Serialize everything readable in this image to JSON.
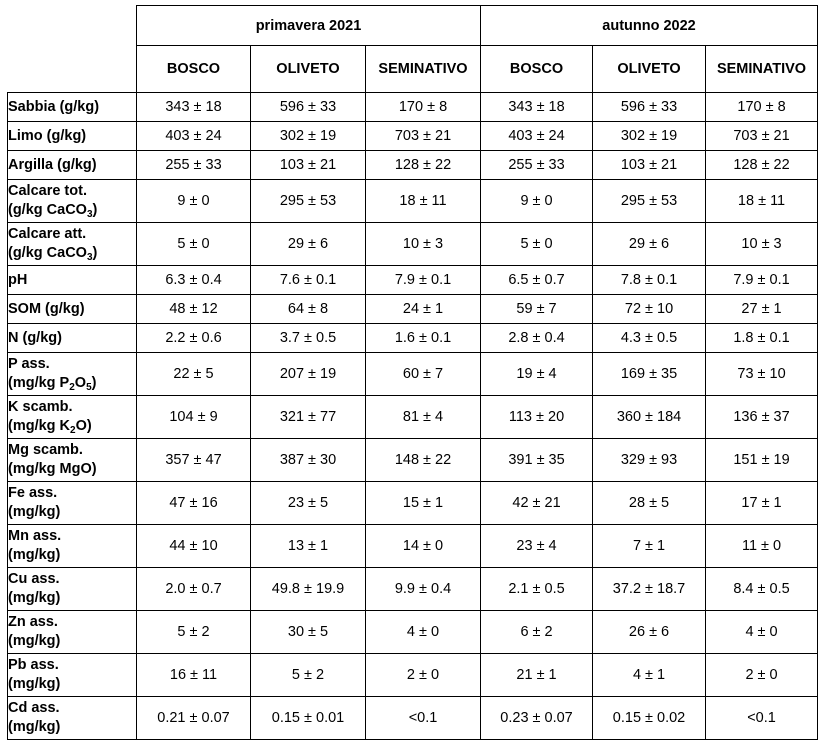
{
  "seasons": [
    "primavera 2021",
    "autunno 2022"
  ],
  "sites": [
    "BOSCO",
    "OLIVETO",
    "SEMINATIVO",
    "BOSCO",
    "OLIVETO",
    "SEMINATIVO"
  ],
  "rows": [
    {
      "label": "Sabbia (g/kg)",
      "values": [
        "343 ± 18",
        "596 ± 33",
        "170 ± 8",
        "343 ± 18",
        "596 ± 33",
        "170 ± 8"
      ]
    },
    {
      "label": "Limo (g/kg)",
      "values": [
        "403 ± 24",
        "302 ± 19",
        "703 ± 21",
        "403 ± 24",
        "302 ± 19",
        "703 ± 21"
      ]
    },
    {
      "label": "Argilla (g/kg)",
      "values": [
        "255 ± 33",
        "103 ± 21",
        "128 ± 22",
        "255 ± 33",
        "103 ± 21",
        "128 ± 22"
      ]
    },
    {
      "label": "Calcare tot.",
      "label2": "(g/kg CaCO",
      "sub": "3",
      "label2_end": ")",
      "values": [
        "9 ± 0",
        "295 ± 53",
        "18 ± 11",
        "9 ± 0",
        "295 ± 53",
        "18 ± 11"
      ]
    },
    {
      "label": "Calcare att.",
      "label2": "(g/kg CaCO",
      "sub": "3",
      "label2_end": ")",
      "values": [
        "5 ± 0",
        "29 ± 6",
        "10 ± 3",
        "5 ± 0",
        "29 ± 6",
        "10 ± 3"
      ]
    },
    {
      "label": "pH",
      "values": [
        "6.3 ± 0.4",
        "7.6 ± 0.1",
        "7.9 ± 0.1",
        "6.5 ± 0.7",
        "7.8 ± 0.1",
        "7.9 ± 0.1"
      ]
    },
    {
      "label": "SOM (g/kg)",
      "values": [
        "48 ± 12",
        "64 ± 8",
        "24 ± 1",
        "59 ± 7",
        "72 ± 10",
        "27 ± 1"
      ]
    },
    {
      "label": "N (g/kg)",
      "values": [
        "2.2 ± 0.6",
        "3.7 ± 0.5",
        "1.6 ± 0.1",
        "2.8 ± 0.4",
        "4.3 ± 0.5",
        "1.8 ± 0.1"
      ]
    },
    {
      "label": "P ass.",
      "label2": "(mg/kg P",
      "sub": "2",
      "label2_mid": "O",
      "sub2": "5",
      "label2_end": ")",
      "values": [
        "22 ± 5",
        "207 ± 19",
        "60 ± 7",
        "19 ± 4",
        "169 ± 35",
        "73 ± 10"
      ]
    },
    {
      "label": "K scamb.",
      "label2": "(mg/kg K",
      "sub": "2",
      "label2_end": "O)",
      "values": [
        "104 ± 9",
        "321 ± 77",
        "81 ± 4",
        "113 ± 20",
        "360 ± 184",
        "136 ± 37"
      ]
    },
    {
      "label": "Mg scamb.",
      "label2": "(mg/kg MgO)",
      "values": [
        "357 ± 47",
        "387 ± 30",
        "148 ± 22",
        "391 ± 35",
        "329 ± 93",
        "151 ± 19"
      ]
    },
    {
      "label": "Fe ass.",
      "label2": "(mg/kg)",
      "values": [
        "47 ± 16",
        "23 ± 5",
        "15 ± 1",
        "42 ± 21",
        "28 ± 5",
        "17 ± 1"
      ]
    },
    {
      "label": "Mn ass.",
      "label2": "(mg/kg)",
      "values": [
        "44 ± 10",
        "13 ± 1",
        "14 ± 0",
        "23 ± 4",
        "7 ± 1",
        "11 ± 0"
      ]
    },
    {
      "label": "Cu ass.",
      "label2": "(mg/kg)",
      "values": [
        "2.0 ± 0.7",
        "49.8 ± 19.9",
        "9.9 ± 0.4",
        "2.1 ± 0.5",
        "37.2 ± 18.7",
        "8.4 ± 0.5"
      ]
    },
    {
      "label": "Zn ass.",
      "label2": "(mg/kg)",
      "values": [
        "5 ± 2",
        "30 ± 5",
        "4 ± 0",
        "6 ± 2",
        "26 ± 6",
        "4 ± 0"
      ]
    },
    {
      "label": "Pb ass.",
      "label2": "(mg/kg)",
      "values": [
        "16 ± 11",
        "5 ± 2",
        "2 ± 0",
        "21 ± 1",
        "4 ± 1",
        "2 ± 0"
      ]
    },
    {
      "label": "Cd ass.",
      "label2": "(mg/kg)",
      "values": [
        "0.21 ± 0.07",
        "0.15 ± 0.01",
        "<0.1",
        "0.23 ± 0.07",
        "0.15 ± 0.02",
        "<0.1"
      ]
    }
  ]
}
